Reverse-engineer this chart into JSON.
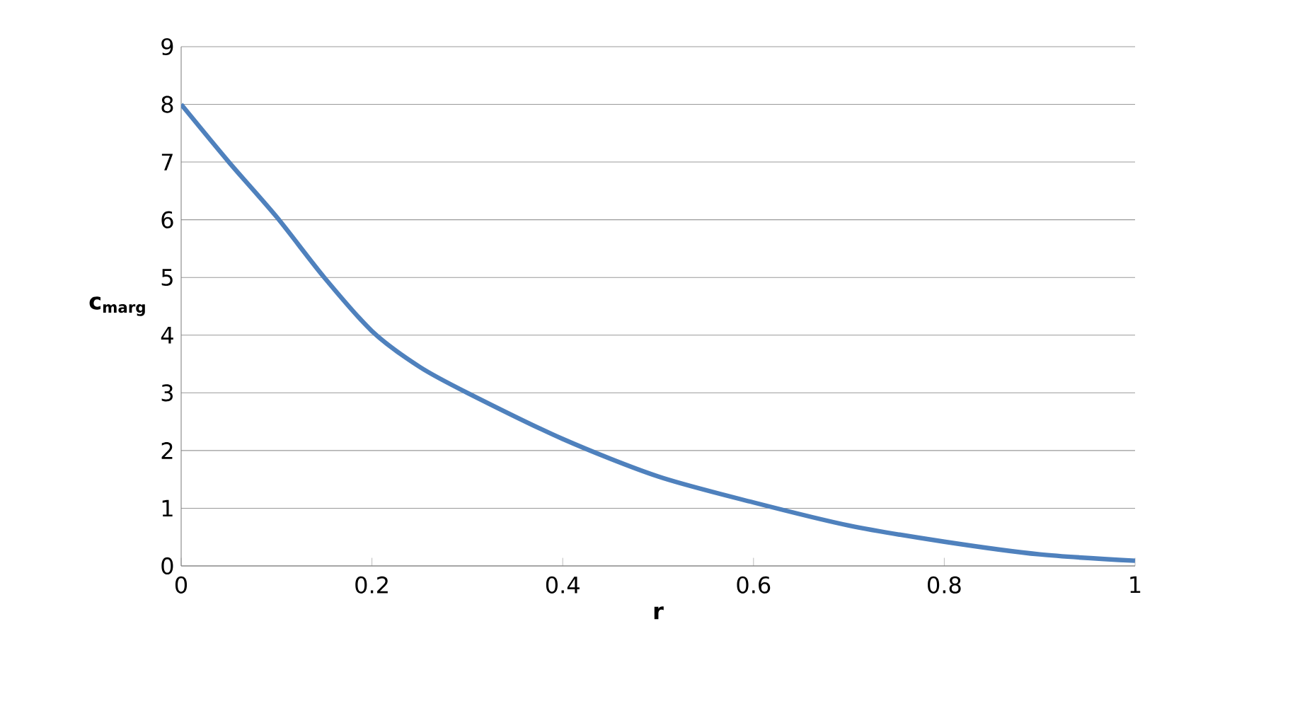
{
  "chart_data": {
    "type": "line",
    "xlabel": "r",
    "ylabel": "c$_{marg}$",
    "x": [
      0,
      0.05,
      0.1,
      0.15,
      0.2,
      0.25,
      0.3,
      0.4,
      0.5,
      0.6,
      0.7,
      0.8,
      0.9,
      1
    ],
    "series": [
      {
        "color": "#4f81bd",
        "values": [
          8,
          7.0,
          6.05,
          5.0,
          4.07,
          3.45,
          3.0,
          2.2,
          1.55,
          1.1,
          0.7,
          0.42,
          0.2,
          0.09
        ]
      }
    ],
    "xlim": [
      0,
      1
    ],
    "ylim": [
      0,
      9
    ],
    "xticks": [
      0,
      0.2,
      0.4,
      0.6,
      0.8,
      1
    ],
    "yticks": [
      0,
      1,
      2,
      3,
      4,
      5,
      6,
      7,
      8,
      9
    ],
    "grid": "y",
    "marker": "none",
    "line_style": "solid"
  }
}
